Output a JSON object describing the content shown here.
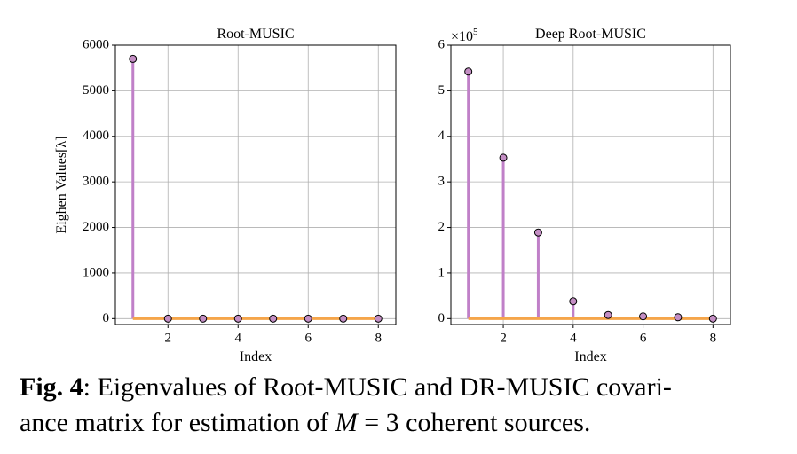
{
  "chart_data": [
    {
      "type": "stem",
      "title": "Root-MUSIC",
      "x_label": "Index",
      "y_label": "Eighen Values[λ]",
      "x": [
        1,
        2,
        3,
        4,
        5,
        6,
        7,
        8
      ],
      "values": [
        5700,
        0,
        0,
        0,
        0,
        0,
        0,
        0
      ],
      "xlim": [
        0.5,
        8.5
      ],
      "ylim": [
        -130,
        6000
      ],
      "xticks": [
        2,
        4,
        6,
        8
      ],
      "yticks": [
        0,
        1000,
        2000,
        3000,
        4000,
        5000,
        6000
      ],
      "grid": true,
      "stem_color": "#c080c8",
      "marker_color": "#c48ec4",
      "baseline_color": "#f5a54a"
    },
    {
      "type": "stem",
      "title": "Deep Root-MUSIC",
      "x_label": "Index",
      "y_multiplier": {
        "base": "×10",
        "exponent": "5"
      },
      "x": [
        1,
        2,
        3,
        4,
        5,
        6,
        7,
        8
      ],
      "values": [
        5.42,
        3.53,
        1.89,
        0.38,
        0.08,
        0.05,
        0.03,
        0
      ],
      "xlim": [
        0.5,
        8.5
      ],
      "ylim": [
        -0.13,
        6
      ],
      "xticks": [
        2,
        4,
        6,
        8
      ],
      "yticks": [
        0,
        1,
        2,
        3,
        4,
        5,
        6
      ],
      "grid": true,
      "stem_color": "#c080c8",
      "marker_color": "#c48ec4",
      "baseline_color": "#f5a54a"
    }
  ],
  "caption": {
    "label": "Fig. 4",
    "line1": ": Eigenvalues of Root-MUSIC and DR-MUSIC covari-",
    "line2_start": "ance matrix for estimation of ",
    "math_var": "M",
    "line2_end": " = 3 coherent sources."
  }
}
